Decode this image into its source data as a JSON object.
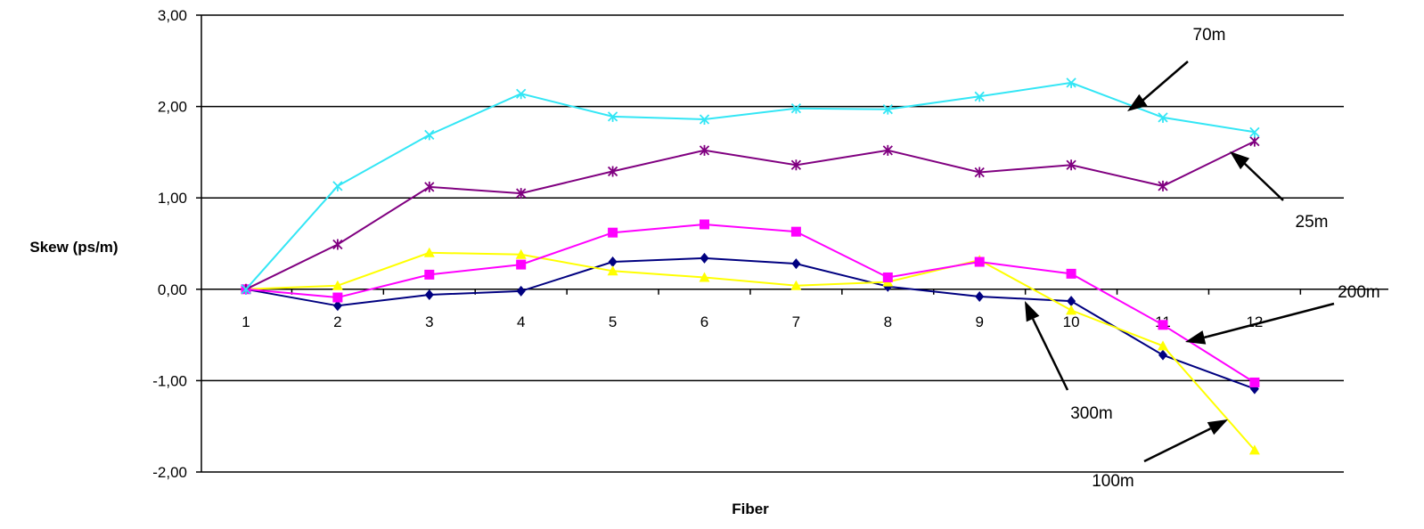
{
  "chart_data": {
    "type": "line",
    "title": "",
    "xlabel": "Fiber",
    "ylabel": "Skew (ps/m)",
    "categories": [
      "1",
      "2",
      "3",
      "4",
      "5",
      "6",
      "7",
      "8",
      "9",
      "10",
      "11",
      "12"
    ],
    "ylim": [
      -2.0,
      3.0
    ],
    "yticks": [
      "3,00",
      "2,00",
      "1,00",
      "0,00",
      "-1,00",
      "-2,00"
    ],
    "ytick_values": [
      3,
      2,
      1,
      0,
      -1,
      -2
    ],
    "grid": "horizontal",
    "legend": "none",
    "series": [
      {
        "name": "70m",
        "color": "#33E6F5",
        "marker": "x-star",
        "values": [
          0.0,
          1.13,
          1.69,
          2.14,
          1.89,
          1.86,
          1.98,
          1.97,
          2.11,
          2.26,
          1.88,
          1.72
        ]
      },
      {
        "name": "25m",
        "color": "#800080",
        "marker": "asterisk",
        "values": [
          0.0,
          0.49,
          1.12,
          1.05,
          1.29,
          1.52,
          1.36,
          1.52,
          1.28,
          1.36,
          1.13,
          1.62
        ]
      },
      {
        "name": "200m",
        "color": "#FF00FF",
        "marker": "square",
        "values": [
          0.0,
          -0.09,
          0.16,
          0.27,
          0.62,
          0.71,
          0.63,
          0.13,
          0.3,
          0.17,
          -0.39,
          -1.02
        ]
      },
      {
        "name": "100m",
        "color": "#FFFF00",
        "marker": "triangle",
        "values": [
          0.0,
          0.04,
          0.4,
          0.38,
          0.2,
          0.13,
          0.04,
          0.08,
          0.32,
          -0.23,
          -0.62,
          -1.76
        ]
      },
      {
        "name": "300m",
        "color": "#000080",
        "marker": "diamond",
        "values": [
          0.0,
          -0.18,
          -0.06,
          -0.02,
          0.3,
          0.34,
          0.28,
          0.03,
          -0.08,
          -0.13,
          -0.72,
          -1.09
        ]
      }
    ],
    "annotations": [
      {
        "label": "70m",
        "series": "70m"
      },
      {
        "label": "25m",
        "series": "25m"
      },
      {
        "label": "200m",
        "series": "200m"
      },
      {
        "label": "300m",
        "series": "300m"
      },
      {
        "label": "100m",
        "series": "100m"
      }
    ]
  }
}
